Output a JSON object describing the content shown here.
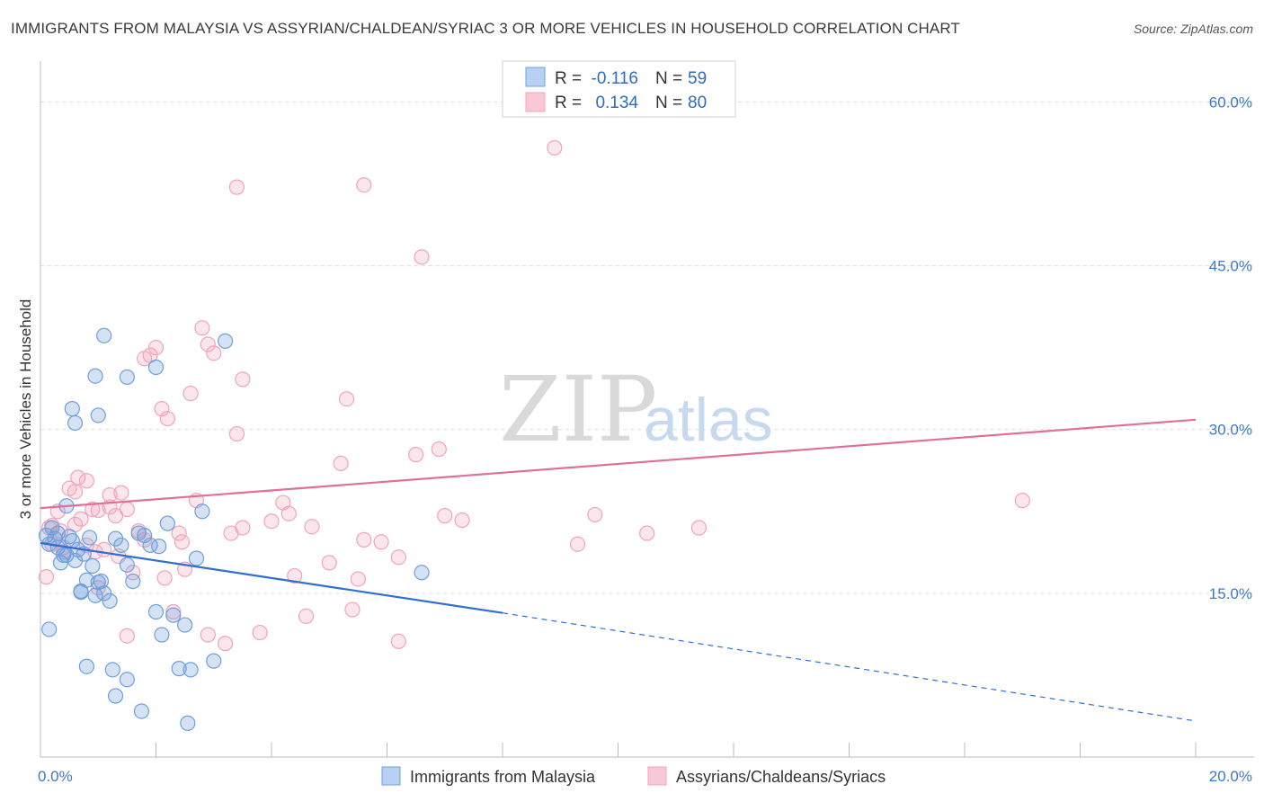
{
  "title": "IMMIGRANTS FROM MALAYSIA VS ASSYRIAN/CHALDEAN/SYRIAC 3 OR MORE VEHICLES IN HOUSEHOLD CORRELATION CHART",
  "source": "Source: ZipAtlas.com",
  "watermark": {
    "zip": "ZIP",
    "atlas": "atlas"
  },
  "colors": {
    "blue": "#6fa0dc",
    "blue_line": "#2f6fd0",
    "pink": "#f0a4bb",
    "pink_line": "#e0709a",
    "tick_text": "#3e78c8"
  },
  "legend": {
    "r_label": "R =",
    "n_label": "N =",
    "series": [
      {
        "r": "-0.116",
        "n": "59"
      },
      {
        "r": "0.134",
        "n": "80"
      }
    ]
  },
  "chart_data": {
    "type": "scatter",
    "xlabel": "",
    "ylabel": "3 or more Vehicles in Household",
    "xlim": [
      0,
      20
    ],
    "ylim": [
      0,
      63
    ],
    "x_tick_labels": [
      "0.0%",
      "20.0%"
    ],
    "y_ticks": [
      15,
      30,
      45,
      60
    ],
    "y_tick_labels": [
      "15.0%",
      "30.0%",
      "45.0%",
      "60.0%"
    ],
    "series": [
      {
        "name": "Immigrants from Malaysia",
        "r": -0.116,
        "n": 59,
        "trend": {
          "x0": 0,
          "y0": 19.6,
          "x1": 8,
          "y1": 13.2,
          "dash_x1": 20,
          "dash_y1": 3.3
        },
        "points": [
          [
            0.1,
            20.3
          ],
          [
            0.15,
            19.5
          ],
          [
            0.2,
            21.0
          ],
          [
            0.25,
            20.0
          ],
          [
            0.3,
            19.2
          ],
          [
            0.35,
            17.8
          ],
          [
            0.4,
            18.5
          ],
          [
            0.45,
            23.0
          ],
          [
            0.5,
            20.2
          ],
          [
            0.55,
            19.8
          ],
          [
            0.6,
            18.0
          ],
          [
            0.65,
            19.0
          ],
          [
            0.7,
            15.2
          ],
          [
            0.75,
            18.6
          ],
          [
            0.8,
            16.2
          ],
          [
            0.85,
            20.1
          ],
          [
            0.9,
            17.5
          ],
          [
            0.95,
            14.8
          ],
          [
            1.0,
            16.0
          ],
          [
            1.1,
            15.0
          ],
          [
            1.2,
            14.3
          ],
          [
            1.3,
            20.0
          ],
          [
            1.4,
            19.4
          ],
          [
            1.5,
            17.6
          ],
          [
            1.6,
            16.1
          ],
          [
            1.7,
            20.5
          ],
          [
            1.8,
            20.3
          ],
          [
            1.9,
            19.4
          ],
          [
            2.0,
            13.3
          ],
          [
            2.1,
            11.2
          ],
          [
            2.2,
            21.4
          ],
          [
            2.3,
            13.0
          ],
          [
            2.4,
            8.1
          ],
          [
            2.5,
            12.1
          ],
          [
            2.6,
            8.0
          ],
          [
            2.7,
            18.2
          ],
          [
            2.8,
            22.5
          ],
          [
            3.0,
            8.8
          ],
          [
            0.55,
            31.9
          ],
          [
            0.6,
            30.6
          ],
          [
            1.0,
            31.3
          ],
          [
            1.1,
            38.6
          ],
          [
            0.95,
            34.9
          ],
          [
            1.5,
            34.8
          ],
          [
            2.0,
            35.7
          ],
          [
            3.2,
            38.1
          ],
          [
            0.15,
            11.7
          ],
          [
            0.8,
            8.3
          ],
          [
            1.25,
            8.0
          ],
          [
            1.3,
            5.6
          ],
          [
            1.5,
            7.1
          ],
          [
            1.75,
            4.2
          ],
          [
            2.55,
            3.1
          ],
          [
            6.6,
            16.9
          ],
          [
            0.3,
            20.5
          ],
          [
            0.7,
            15.1
          ],
          [
            2.05,
            19.3
          ],
          [
            1.05,
            16.1
          ],
          [
            0.45,
            18.5
          ]
        ]
      },
      {
        "name": "Assyrians/Chaldeans/Syriacs",
        "r": 0.134,
        "n": 80,
        "trend": {
          "x0": 0,
          "y0": 22.8,
          "x1": 20,
          "y1": 30.9
        },
        "points": [
          [
            0.1,
            16.5
          ],
          [
            0.2,
            21.2
          ],
          [
            0.3,
            22.5
          ],
          [
            0.4,
            19.2
          ],
          [
            0.5,
            24.6
          ],
          [
            0.6,
            24.3
          ],
          [
            0.7,
            21.8
          ],
          [
            0.8,
            25.3
          ],
          [
            0.9,
            22.7
          ],
          [
            1.0,
            22.6
          ],
          [
            1.1,
            19.0
          ],
          [
            1.2,
            22.9
          ],
          [
            1.3,
            22.1
          ],
          [
            1.4,
            24.2
          ],
          [
            1.5,
            22.7
          ],
          [
            1.6,
            16.9
          ],
          [
            1.7,
            20.7
          ],
          [
            1.8,
            19.9
          ],
          [
            1.9,
            36.8
          ],
          [
            2.0,
            37.5
          ],
          [
            2.1,
            31.9
          ],
          [
            2.2,
            31.0
          ],
          [
            2.3,
            13.3
          ],
          [
            2.5,
            17.2
          ],
          [
            2.6,
            33.3
          ],
          [
            2.7,
            23.5
          ],
          [
            2.8,
            39.3
          ],
          [
            2.9,
            37.8
          ],
          [
            3.0,
            37.0
          ],
          [
            3.2,
            10.4
          ],
          [
            3.4,
            29.6
          ],
          [
            3.5,
            34.6
          ],
          [
            3.8,
            11.4
          ],
          [
            4.0,
            21.6
          ],
          [
            4.2,
            23.3
          ],
          [
            4.3,
            22.3
          ],
          [
            4.4,
            16.6
          ],
          [
            4.6,
            12.9
          ],
          [
            4.7,
            21.1
          ],
          [
            5.0,
            17.8
          ],
          [
            5.2,
            26.9
          ],
          [
            5.3,
            32.8
          ],
          [
            5.5,
            16.3
          ],
          [
            5.6,
            19.9
          ],
          [
            5.9,
            19.7
          ],
          [
            6.2,
            18.3
          ],
          [
            6.5,
            27.7
          ],
          [
            6.6,
            45.8
          ],
          [
            6.9,
            28.2
          ],
          [
            7.0,
            22.1
          ],
          [
            7.3,
            21.7
          ],
          [
            8.9,
            55.8
          ],
          [
            9.3,
            19.5
          ],
          [
            9.6,
            22.2
          ],
          [
            3.4,
            52.2
          ],
          [
            5.6,
            52.4
          ],
          [
            10.5,
            20.5
          ],
          [
            11.4,
            21.0
          ],
          [
            17.0,
            23.5
          ],
          [
            0.8,
            19.4
          ],
          [
            1.0,
            15.5
          ],
          [
            1.5,
            11.1
          ],
          [
            2.4,
            20.5
          ],
          [
            1.8,
            36.5
          ],
          [
            2.9,
            11.2
          ],
          [
            3.5,
            21.0
          ],
          [
            0.2,
            19.5
          ],
          [
            0.4,
            18.8
          ],
          [
            1.2,
            24.0
          ],
          [
            0.65,
            25.6
          ],
          [
            0.35,
            20.7
          ],
          [
            5.4,
            13.5
          ],
          [
            0.95,
            18.8
          ],
          [
            1.35,
            18.4
          ],
          [
            2.15,
            16.4
          ],
          [
            6.2,
            10.6
          ],
          [
            3.3,
            20.5
          ],
          [
            0.15,
            21.0
          ],
          [
            0.6,
            21.3
          ],
          [
            2.45,
            19.7
          ]
        ]
      }
    ],
    "legend_position": "top-center"
  }
}
